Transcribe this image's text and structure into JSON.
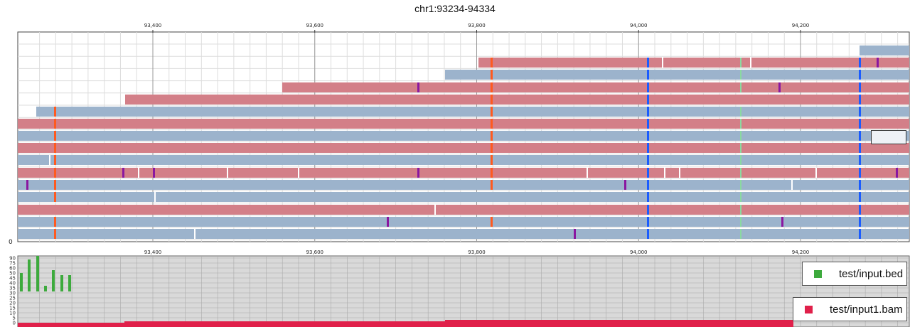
{
  "header": {
    "region": "chr1:93234-94334"
  },
  "colors": {
    "read_forward": "#d37f88",
    "read_reverse": "#9cb3cc",
    "coverage_bar": "#e0204a",
    "bed_bar": "#3daa3d",
    "mismatch_A": "#1a5cff",
    "mismatch_C": "#ff5a1f",
    "mismatch_G": "#8ad9a0",
    "insertion": "#8a17a0",
    "deletion": "#ffffff",
    "grid": "#dddddd",
    "lower_bg": "#d9d9d9"
  },
  "axis": {
    "ticks": [
      {
        "pos": 93400,
        "label": "93,400"
      },
      {
        "pos": 93600,
        "label": "93,600"
      },
      {
        "pos": 93800,
        "label": "93,800"
      },
      {
        "pos": 94000,
        "label": "94,000"
      },
      {
        "pos": 94200,
        "label": "94,200"
      }
    ],
    "row_zero_label": "0"
  },
  "lower_panel": {
    "y_labels": [
      "90",
      "75",
      "60",
      "50",
      "45",
      "40",
      "35",
      "30",
      "25",
      "20",
      "15",
      "10",
      "5",
      "0"
    ]
  },
  "legend": [
    {
      "label": "test/input.bed",
      "icon": "green-square"
    },
    {
      "label": "test/input1.bam",
      "icon": "red-square"
    }
  ]
}
